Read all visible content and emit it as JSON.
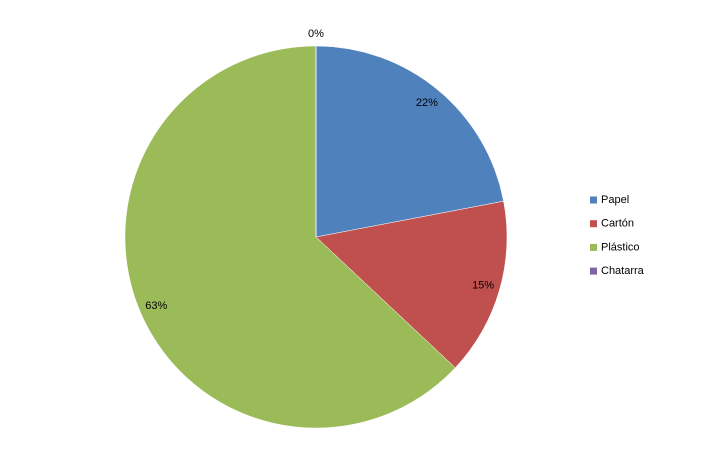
{
  "chart_data": {
    "type": "pie",
    "categories": [
      "Papel",
      "Cartón",
      "Plástico",
      "Chatarra"
    ],
    "values": [
      22,
      15,
      63,
      0
    ],
    "value_labels": [
      "22%",
      "15%",
      "63%",
      "0%"
    ],
    "colors": [
      "#4f81bd",
      "#c0504d",
      "#9bbb59",
      "#8064a2"
    ],
    "legend": "right"
  }
}
